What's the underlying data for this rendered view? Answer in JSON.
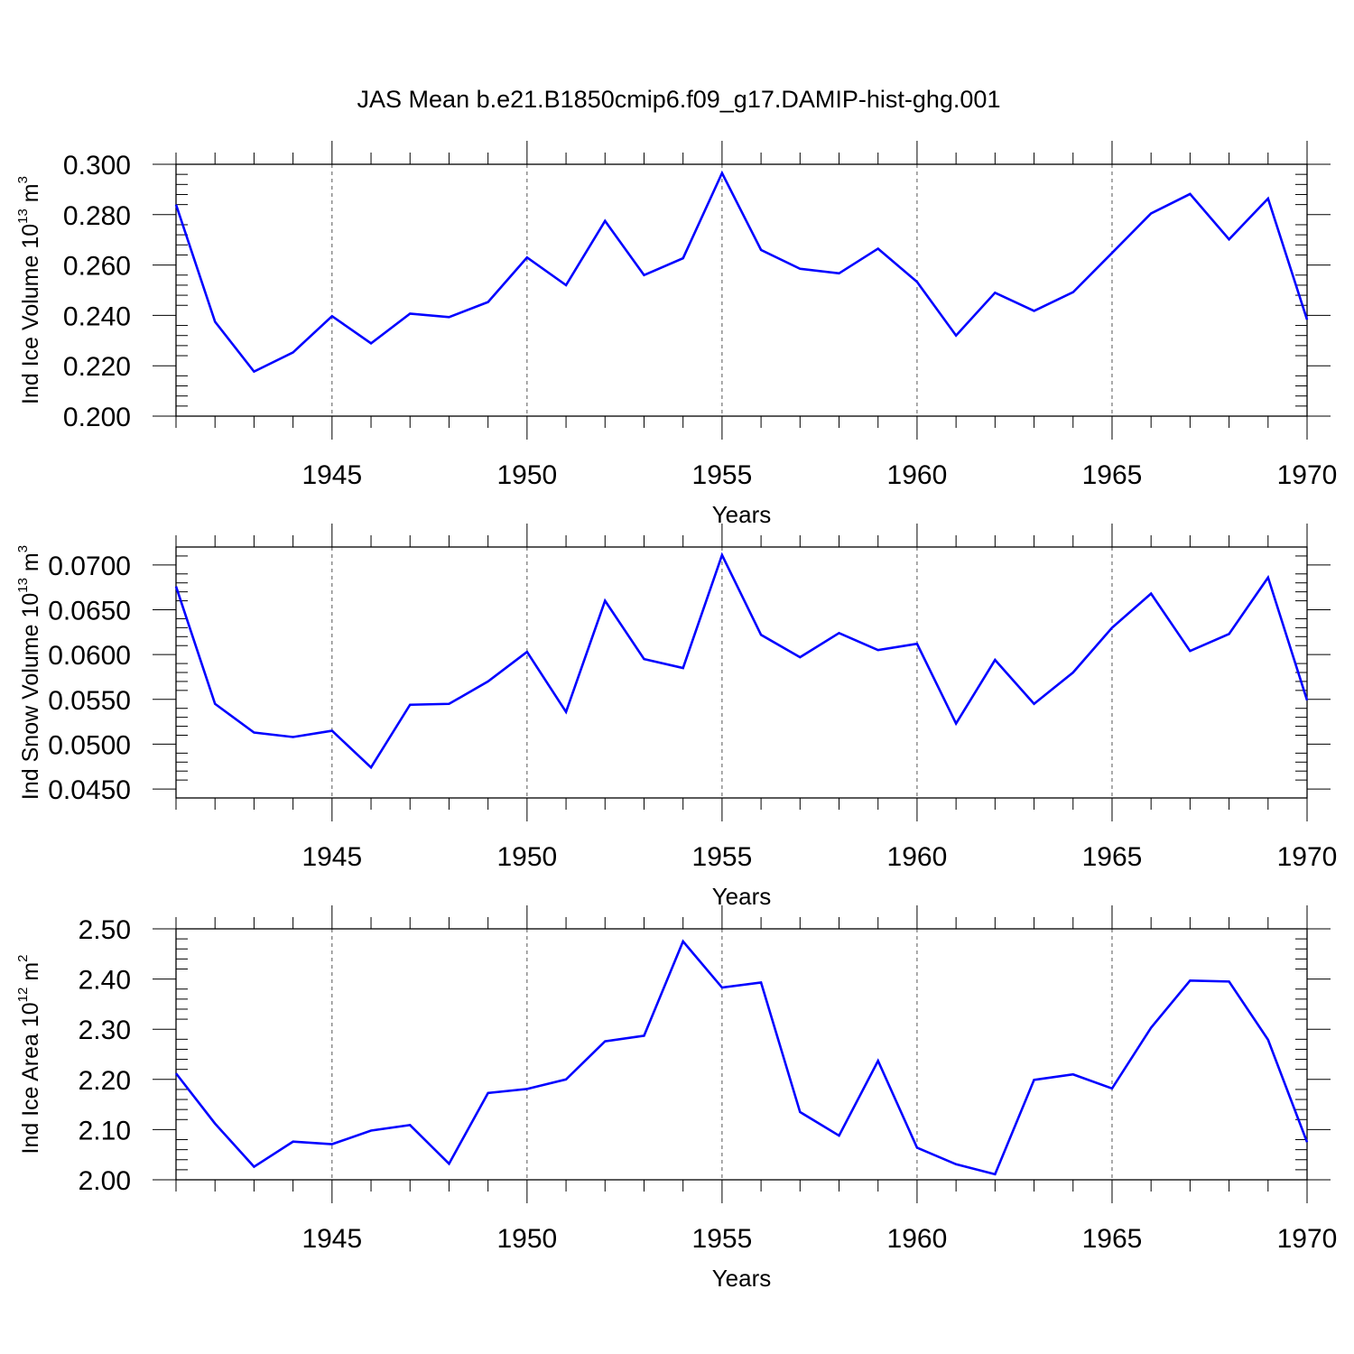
{
  "title": "JAS Mean b.e21.B1850cmip6.f09_g17.DAMIP-hist-ghg.001",
  "colors": {
    "line": "#0000ff",
    "axis": "#000000",
    "grid": "#555555"
  },
  "chart_data": [
    {
      "type": "line",
      "ylabel": {
        "prefix": "Ind Ice Volume 10",
        "exp": "13",
        "unit": " m",
        "unit_exp": "3"
      },
      "xlabel": "Years",
      "xlim": [
        1941,
        1970
      ],
      "ylim": [
        0.2,
        0.3
      ],
      "yticks": [
        "0.200",
        "0.220",
        "0.240",
        "0.260",
        "0.280",
        "0.300"
      ],
      "ytick_values": [
        0.2,
        0.22,
        0.24,
        0.26,
        0.28,
        0.3
      ],
      "xticks": [
        "1945",
        "1950",
        "1955",
        "1960",
        "1965",
        "1970"
      ],
      "xtick_values": [
        1945,
        1950,
        1955,
        1960,
        1965,
        1970
      ],
      "grid_x": [
        1945,
        1950,
        1955,
        1960,
        1965
      ],
      "x": [
        1941,
        1942,
        1943,
        1944,
        1945,
        1946,
        1947,
        1948,
        1949,
        1950,
        1951,
        1952,
        1953,
        1954,
        1955,
        1956,
        1957,
        1958,
        1959,
        1960,
        1961,
        1962,
        1963,
        1964,
        1965,
        1966,
        1967,
        1968,
        1969,
        1970
      ],
      "values": [
        0.284,
        0.2375,
        0.2177,
        0.2253,
        0.2397,
        0.2289,
        0.2407,
        0.2393,
        0.2453,
        0.263,
        0.252,
        0.2775,
        0.256,
        0.2627,
        0.2965,
        0.266,
        0.2585,
        0.2567,
        0.2665,
        0.2533,
        0.232,
        0.249,
        0.2418,
        0.2492,
        0.2648,
        0.2805,
        0.2882,
        0.2702,
        0.2864,
        0.2383
      ]
    },
    {
      "type": "line",
      "ylabel": {
        "prefix": "Ind Snow Volume 10",
        "exp": "13",
        "unit": " m",
        "unit_exp": "3"
      },
      "xlabel": "Years",
      "xlim": [
        1941,
        1970
      ],
      "ylim": [
        0.044,
        0.072
      ],
      "yticks": [
        "0.0450",
        "0.0500",
        "0.0550",
        "0.0600",
        "0.0650",
        "0.0700"
      ],
      "ytick_values": [
        0.045,
        0.05,
        0.055,
        0.06,
        0.065,
        0.07
      ],
      "xticks": [
        "1945",
        "1950",
        "1955",
        "1960",
        "1965",
        "1970"
      ],
      "xtick_values": [
        1945,
        1950,
        1955,
        1960,
        1965,
        1970
      ],
      "grid_x": [
        1945,
        1950,
        1955,
        1960,
        1965
      ],
      "x": [
        1941,
        1942,
        1943,
        1944,
        1945,
        1946,
        1947,
        1948,
        1949,
        1950,
        1951,
        1952,
        1953,
        1954,
        1955,
        1956,
        1957,
        1958,
        1959,
        1960,
        1961,
        1962,
        1963,
        1964,
        1965,
        1966,
        1967,
        1968,
        1969,
        1970
      ],
      "values": [
        0.0676,
        0.0545,
        0.0513,
        0.0508,
        0.0515,
        0.0474,
        0.0544,
        0.0545,
        0.057,
        0.0603,
        0.0536,
        0.066,
        0.0595,
        0.0585,
        0.0711,
        0.0622,
        0.0597,
        0.0624,
        0.0605,
        0.0612,
        0.0523,
        0.0594,
        0.0545,
        0.058,
        0.063,
        0.0668,
        0.0604,
        0.0623,
        0.0686,
        0.0549
      ]
    },
    {
      "type": "line",
      "ylabel": {
        "prefix": "Ind Ice Area 10",
        "exp": "12",
        "unit": " m",
        "unit_exp": "2"
      },
      "xlabel": "Years",
      "xlim": [
        1941,
        1970
      ],
      "ylim": [
        2.0,
        2.5
      ],
      "yticks": [
        "2.00",
        "2.10",
        "2.20",
        "2.30",
        "2.40",
        "2.50"
      ],
      "ytick_values": [
        2.0,
        2.1,
        2.2,
        2.3,
        2.4,
        2.5
      ],
      "xticks": [
        "1945",
        "1950",
        "1955",
        "1960",
        "1965",
        "1970"
      ],
      "xtick_values": [
        1945,
        1950,
        1955,
        1960,
        1965,
        1970
      ],
      "grid_x": [
        1945,
        1950,
        1955,
        1960,
        1965
      ],
      "x": [
        1941,
        1942,
        1943,
        1944,
        1945,
        1946,
        1947,
        1948,
        1949,
        1950,
        1951,
        1952,
        1953,
        1954,
        1955,
        1956,
        1957,
        1958,
        1959,
        1960,
        1961,
        1962,
        1963,
        1964,
        1965,
        1966,
        1967,
        1968,
        1969,
        1970
      ],
      "values": [
        2.212,
        2.112,
        2.026,
        2.076,
        2.071,
        2.098,
        2.109,
        2.032,
        2.173,
        2.181,
        2.2,
        2.276,
        2.287,
        2.475,
        2.383,
        2.393,
        2.135,
        2.088,
        2.237,
        2.064,
        2.031,
        2.011,
        2.199,
        2.21,
        2.182,
        2.303,
        2.397,
        2.395,
        2.279,
        2.075
      ]
    }
  ]
}
